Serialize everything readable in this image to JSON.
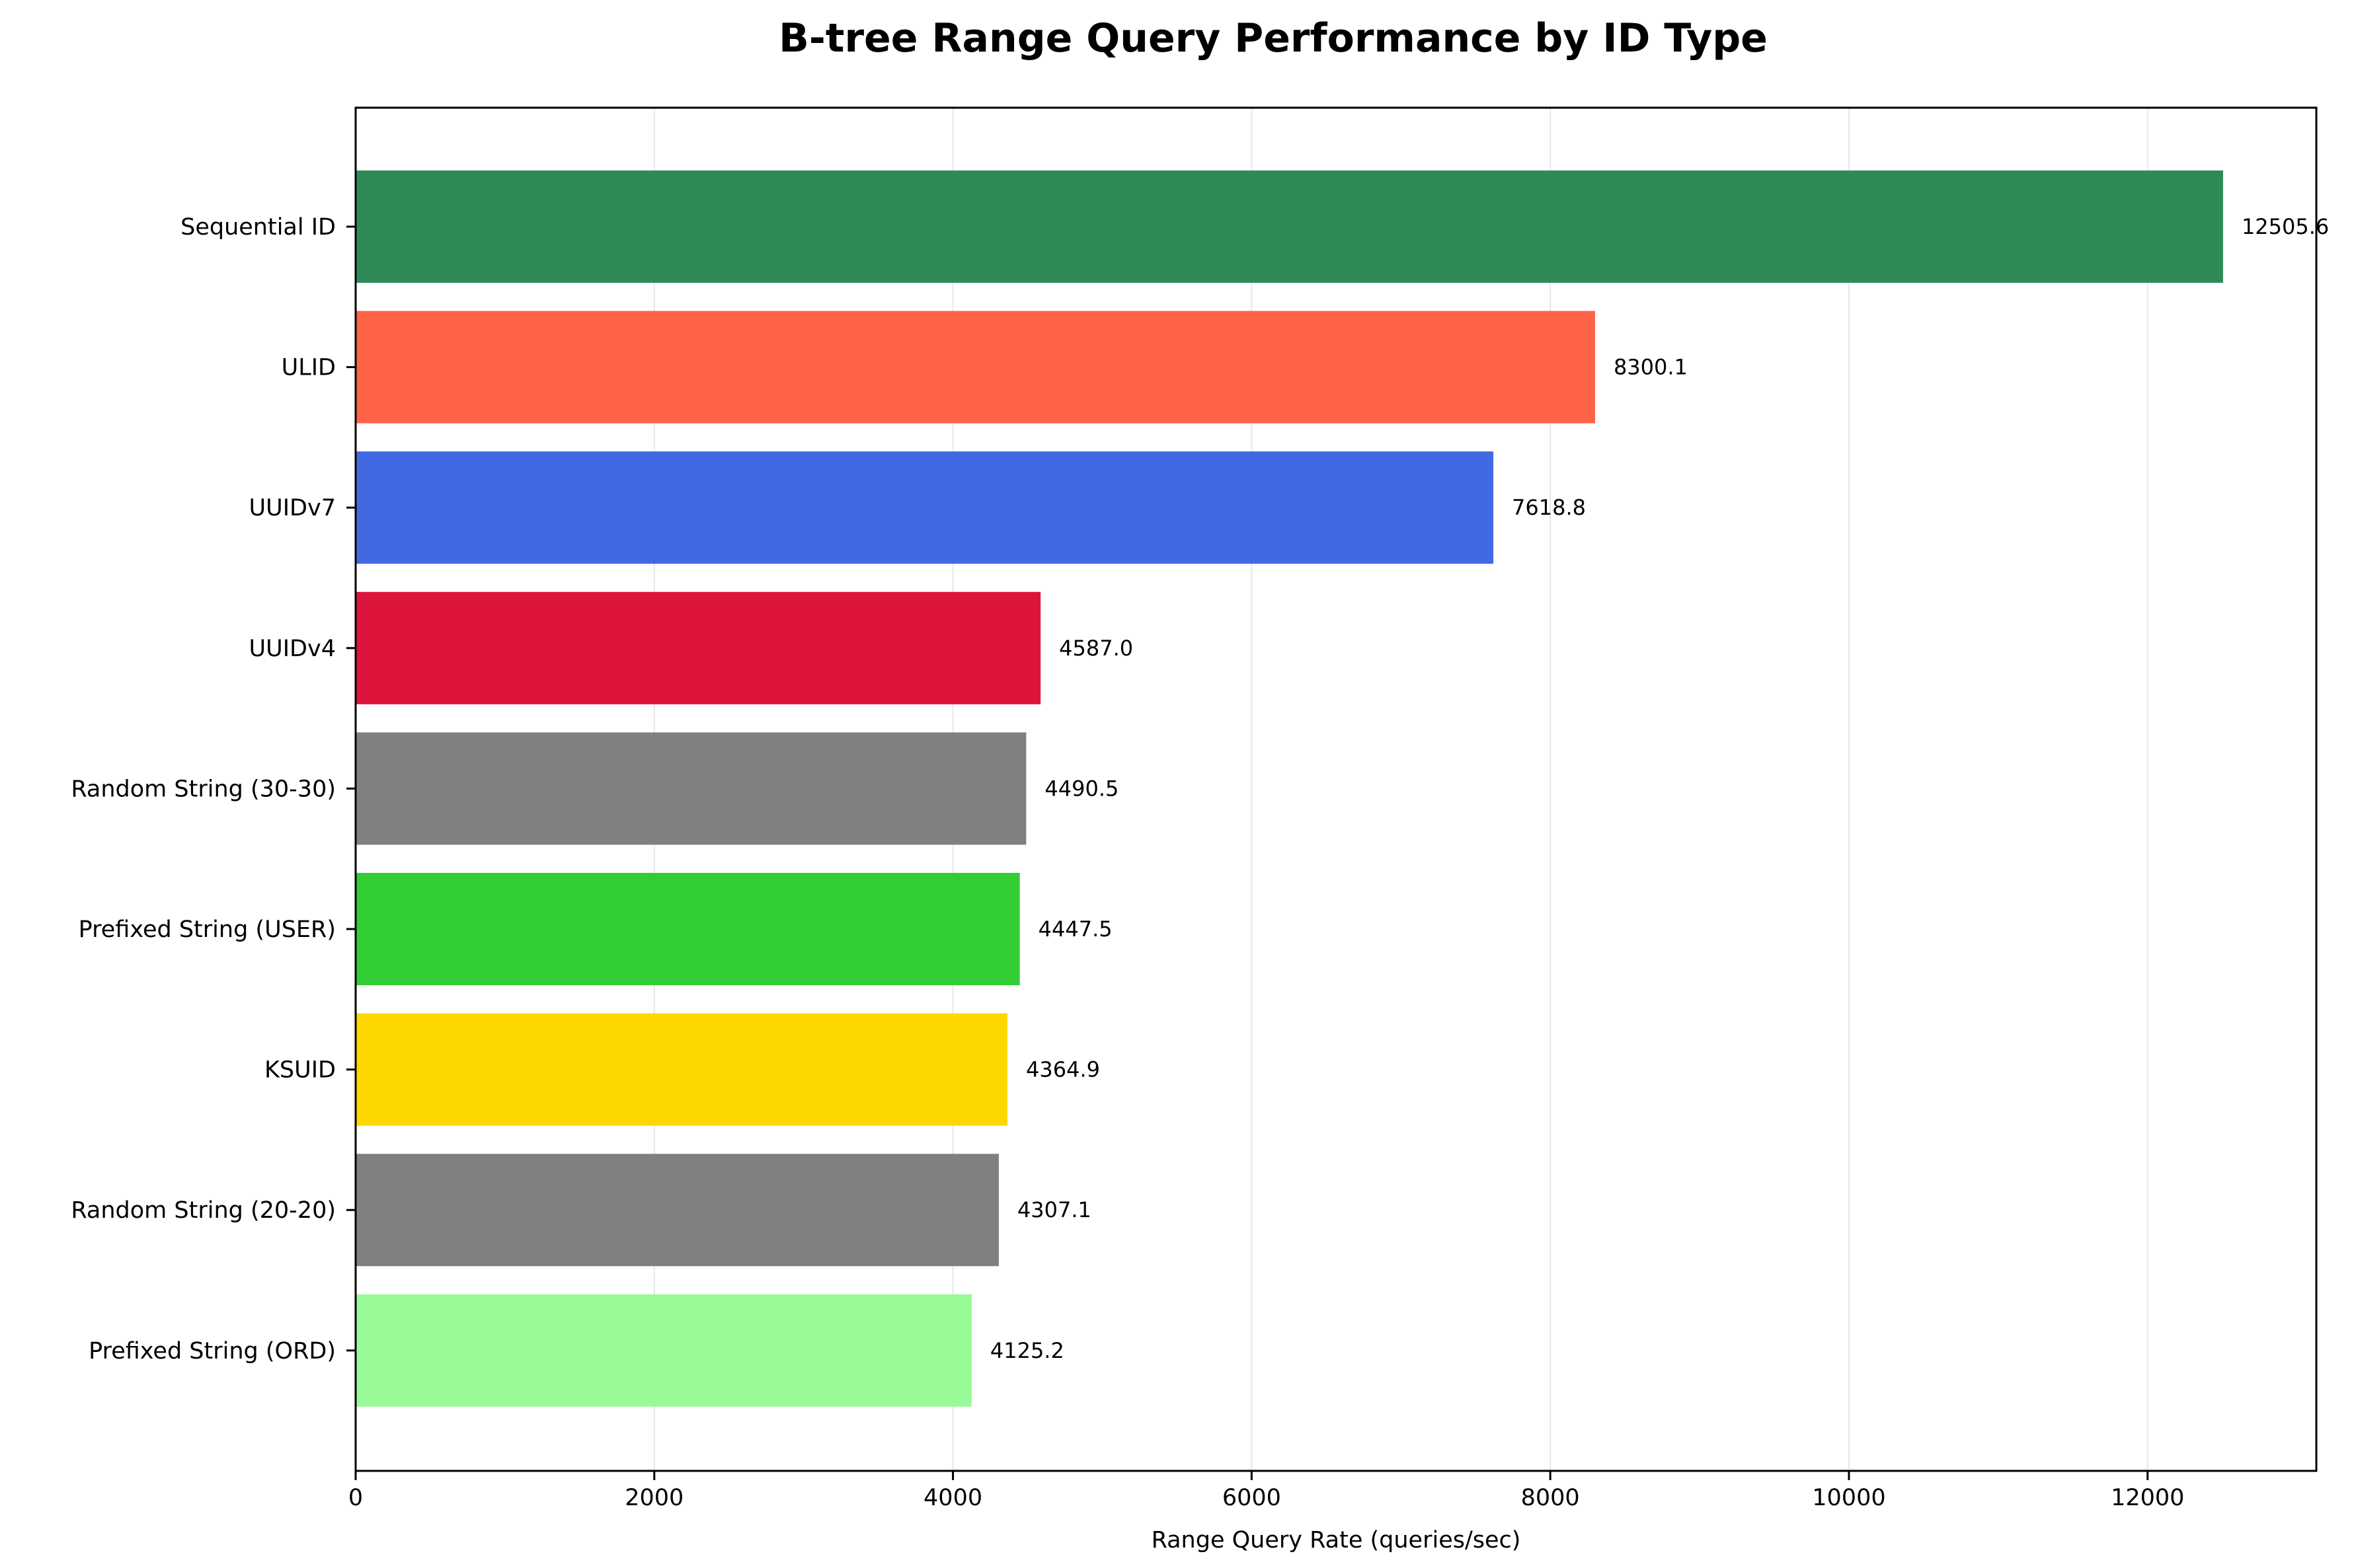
{
  "chart_data": {
    "type": "bar",
    "orientation": "horizontal",
    "title": "B-tree Range Query Performance by ID Type",
    "xlabel": "Range Query Rate (queries/sec)",
    "ylabel": "",
    "xlim": [
      0,
      13130
    ],
    "xticks": [
      0,
      2000,
      4000,
      6000,
      8000,
      10000,
      12000
    ],
    "grid": "vertical",
    "categories": [
      "Sequential ID",
      "ULID",
      "UUIDv7",
      "UUIDv4",
      "Random String (30-30)",
      "Prefixed String (USER)",
      "KSUID",
      "Random String (20-20)",
      "Prefixed String (ORD)"
    ],
    "values": [
      12505.6,
      8300.1,
      7618.8,
      4587.0,
      4490.5,
      4447.5,
      4364.9,
      4307.1,
      4125.2
    ],
    "value_labels": [
      "12505.6",
      "8300.1",
      "7618.8",
      "4587.0",
      "4490.5",
      "4447.5",
      "4364.9",
      "4307.1",
      "4125.2"
    ],
    "colors": [
      "#2e8b57",
      "#ff6347",
      "#4169e1",
      "#dc143c",
      "#808080",
      "#32cd32",
      "#ffd700",
      "#808080",
      "#98fb98"
    ]
  }
}
